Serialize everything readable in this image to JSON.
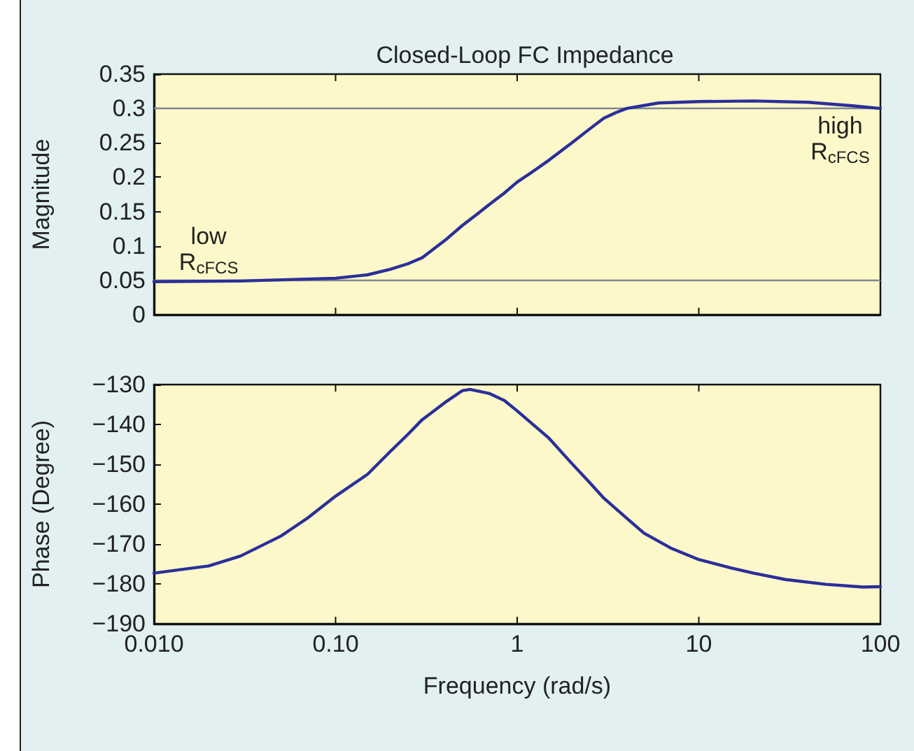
{
  "chart_data": [
    {
      "type": "line",
      "title": "Closed-Loop FC Impedance",
      "ylabel": "Magnitude",
      "log": "x",
      "grid": false,
      "tick_labels": "y",
      "marker": "none",
      "x": [
        0.01,
        0.03,
        0.1,
        0.15,
        0.2,
        0.25,
        0.3,
        0.4,
        0.5,
        0.6,
        0.7,
        0.85,
        1,
        1.2,
        1.5,
        2,
        2.5,
        3,
        3.5,
        4,
        6,
        10,
        20,
        40,
        70,
        100
      ],
      "series": [
        {
          "color": "#2b2f9a",
          "values": [
            0.048,
            0.049,
            0.053,
            0.058,
            0.066,
            0.074,
            0.083,
            0.108,
            0.13,
            0.146,
            0.16,
            0.177,
            0.193,
            0.207,
            0.225,
            0.25,
            0.27,
            0.286,
            0.294,
            0.3,
            0.308,
            0.31,
            0.311,
            0.309,
            0.304,
            0.3
          ]
        }
      ],
      "xlim": [
        0.01,
        100
      ],
      "xticks": [
        {
          "value": 0.01,
          "label": null
        },
        {
          "value": 0.1,
          "label": null
        },
        {
          "value": 1,
          "label": null
        },
        {
          "value": 10,
          "label": null
        },
        {
          "value": 100,
          "label": null
        }
      ],
      "ylim": [
        0,
        0.35
      ],
      "yticks": [
        0,
        0.05,
        0.1,
        0.15,
        0.2,
        0.25,
        0.3,
        0.35
      ],
      "ref_lines": [
        {
          "axis": "y",
          "value": 0.3,
          "label": null,
          "color": "#7f8790"
        },
        {
          "axis": "y",
          "value": 0.05,
          "label": null,
          "color": "#7f8790"
        }
      ],
      "annotations": [
        {
          "text": "low\nR$_{cFCS}$",
          "x": 0.02,
          "y": 0.05
        },
        {
          "text": "high\nR$_{cFCS}$",
          "x": 60,
          "y": 0.3
        }
      ]
    },
    {
      "type": "line",
      "ylabel": "Phase (Degree)",
      "xlabel": "Frequency (rad/s)",
      "log": "x",
      "grid": false,
      "marker": "none",
      "x": [
        0.01,
        0.02,
        0.03,
        0.05,
        0.07,
        0.1,
        0.15,
        0.2,
        0.25,
        0.3,
        0.4,
        0.5,
        0.55,
        0.7,
        0.85,
        1,
        1.5,
        2,
        2.5,
        3,
        4,
        5,
        7,
        10,
        15,
        20,
        30,
        50,
        80,
        100
      ],
      "series": [
        {
          "color": "#2b2f9a",
          "values": [
            -177.3,
            -175.5,
            -173,
            -168,
            -163.5,
            -158,
            -152.5,
            -146.8,
            -142.5,
            -138.8,
            -134.5,
            -131.5,
            -131.2,
            -132.2,
            -134,
            -136.6,
            -143.5,
            -149.8,
            -154.5,
            -158.5,
            -163.5,
            -167.3,
            -171,
            -173.9,
            -176,
            -177.3,
            -178.9,
            -180.1,
            -180.8,
            -180.7
          ]
        }
      ],
      "xlim": [
        0.01,
        100
      ],
      "xticks": [
        {
          "value": 0.01,
          "label": "0.010"
        },
        {
          "value": 0.1,
          "label": "0.10"
        },
        1,
        10,
        100
      ],
      "ylim": [
        -190,
        -130
      ],
      "yticks": [
        {
          "value": -190,
          "label": "−190"
        },
        {
          "value": -180,
          "label": "−180"
        },
        {
          "value": -170,
          "label": "−170"
        },
        {
          "value": -160,
          "label": "−160"
        },
        {
          "value": -150,
          "label": "−150"
        },
        {
          "value": -140,
          "label": "−140"
        },
        {
          "value": -130,
          "label": "−130"
        }
      ]
    }
  ]
}
